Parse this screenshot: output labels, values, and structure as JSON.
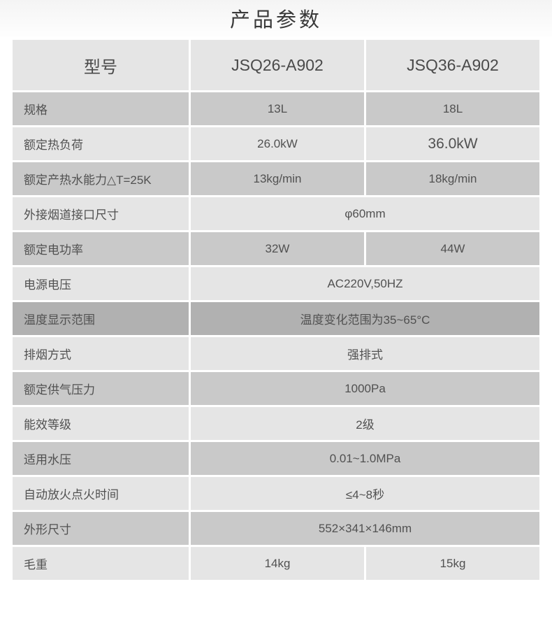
{
  "page": {
    "title": "产品参数"
  },
  "table": {
    "header": {
      "label": "型号",
      "model_a": "JSQ26-A902",
      "model_b": "JSQ36-A902"
    },
    "rows": [
      {
        "label": "规格",
        "values": [
          "13L",
          "18L"
        ]
      },
      {
        "label": "额定热负荷",
        "values": [
          "26.0kW",
          "36.0kW"
        ]
      },
      {
        "label": "额定产热水能力△T=25K",
        "values": [
          "13kg/min",
          "18kg/min"
        ]
      },
      {
        "label": "外接烟道接口尺寸",
        "values": [
          "φ60mm"
        ]
      },
      {
        "label": "额定电功率",
        "values": [
          "32W",
          "44W"
        ]
      },
      {
        "label": "电源电压",
        "values": [
          "AC220V,50HZ"
        ]
      },
      {
        "label": "温度显示范围",
        "values": [
          "温度变化范围为35~65°C"
        ]
      },
      {
        "label": "排烟方式",
        "values": [
          "强排式"
        ]
      },
      {
        "label": "额定供气压力",
        "values": [
          "1000Pa"
        ]
      },
      {
        "label": "能效等级",
        "values": [
          "2级"
        ]
      },
      {
        "label": "适用水压",
        "values": [
          "0.01~1.0MPa"
        ]
      },
      {
        "label": "自动放火点火时间",
        "values": [
          "≤4~8秒"
        ]
      },
      {
        "label": "外形尺寸",
        "values": [
          "552×341×146mm"
        ]
      },
      {
        "label": "毛重",
        "values": [
          "14kg",
          "15kg"
        ]
      }
    ]
  },
  "colors": {
    "row_light": "#e5e5e5",
    "row_medium": "#c9c9c9",
    "row_dark": "#b1b1b1",
    "text": "#515151"
  }
}
